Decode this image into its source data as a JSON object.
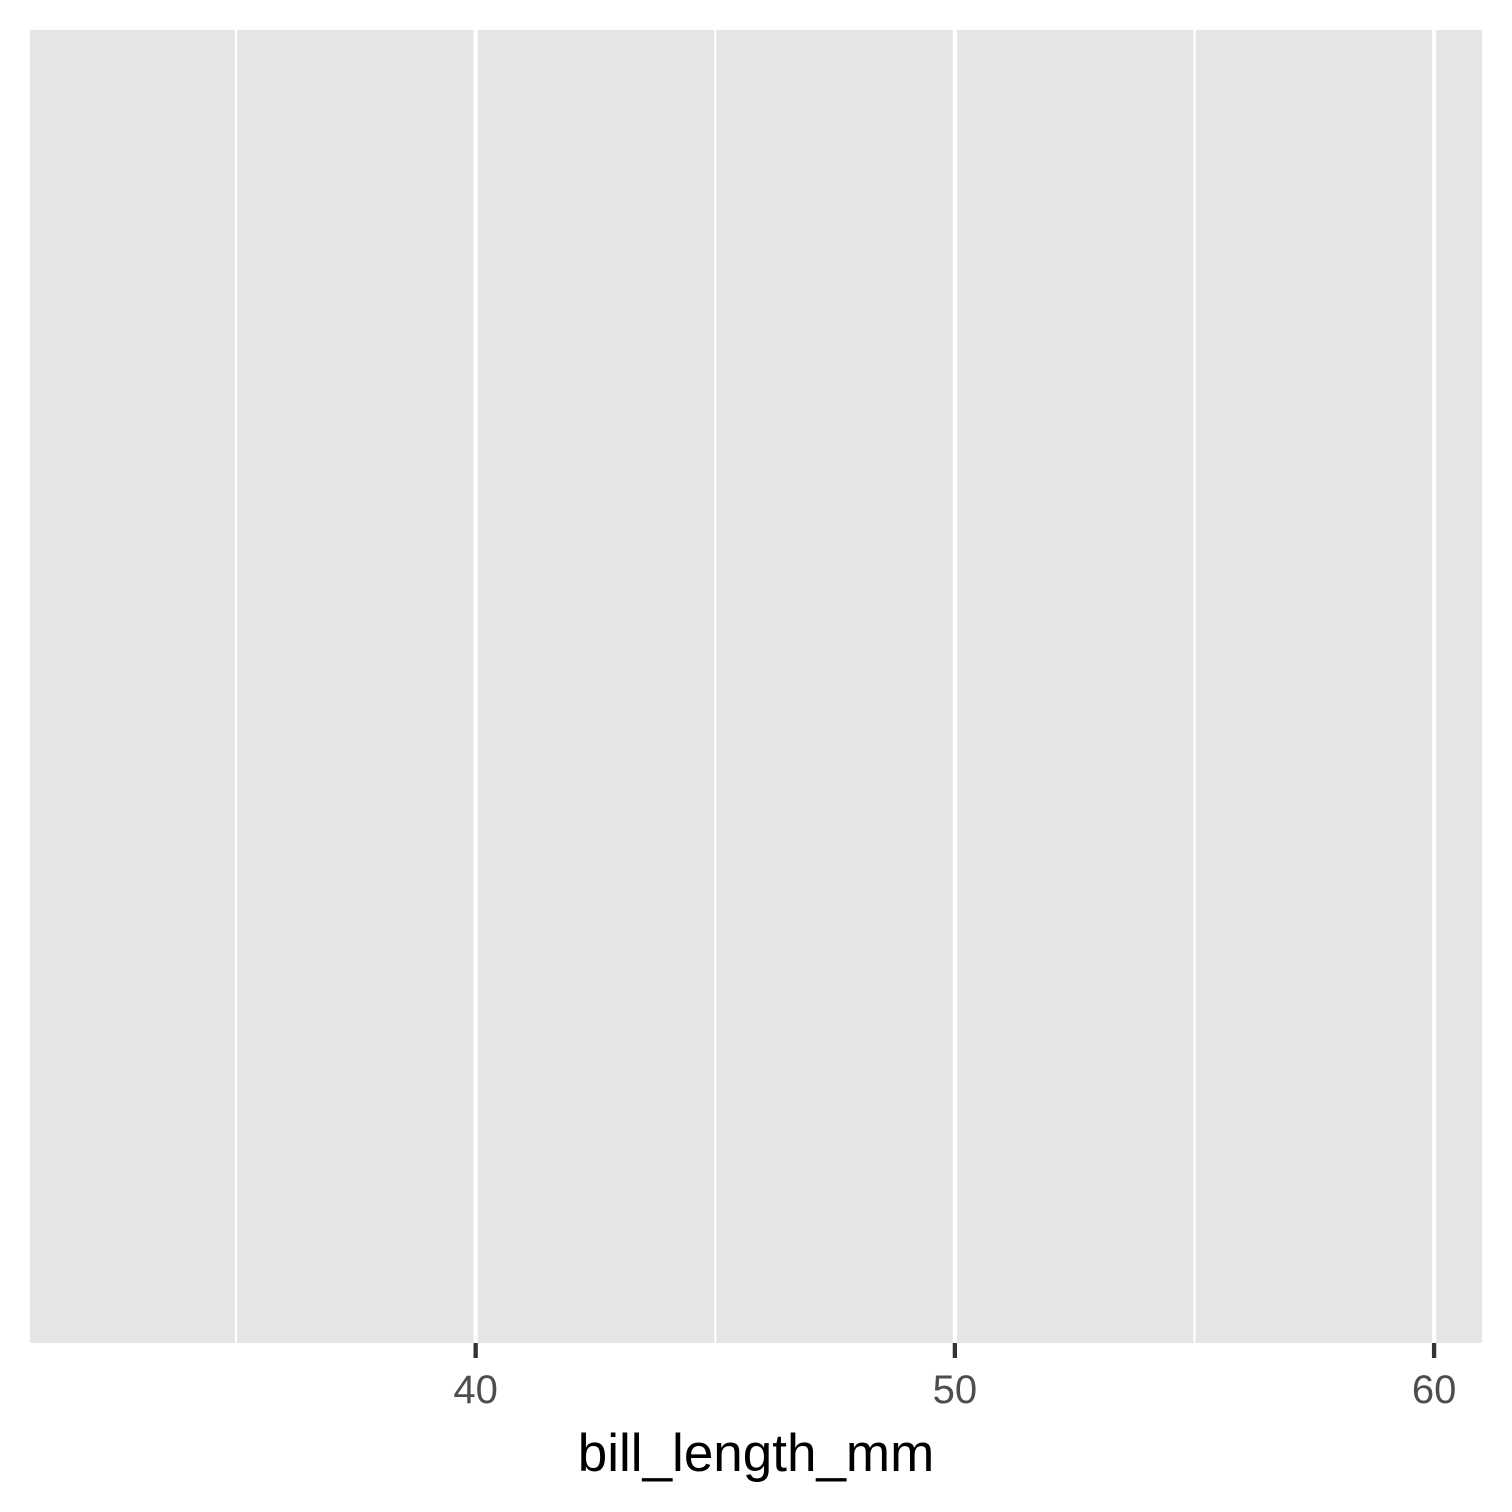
{
  "chart_data": {
    "type": "area",
    "title": "",
    "xlabel": "bill_length_mm",
    "ylabel": "",
    "xlim": [
      30.7,
      61
    ],
    "x_ticks": [
      40,
      50,
      60
    ],
    "x_tick_labels": [
      "40",
      "50",
      "60"
    ],
    "x_minor_gridlines": [
      35,
      45,
      55
    ],
    "series": [],
    "grid": true,
    "legend": "none",
    "colors": {
      "panel_background": "#E5E5E5",
      "gridline": "#FFFFFF",
      "tick": "#333333",
      "tick_label": "#4D4D4D",
      "axis_title": "#000000"
    }
  }
}
